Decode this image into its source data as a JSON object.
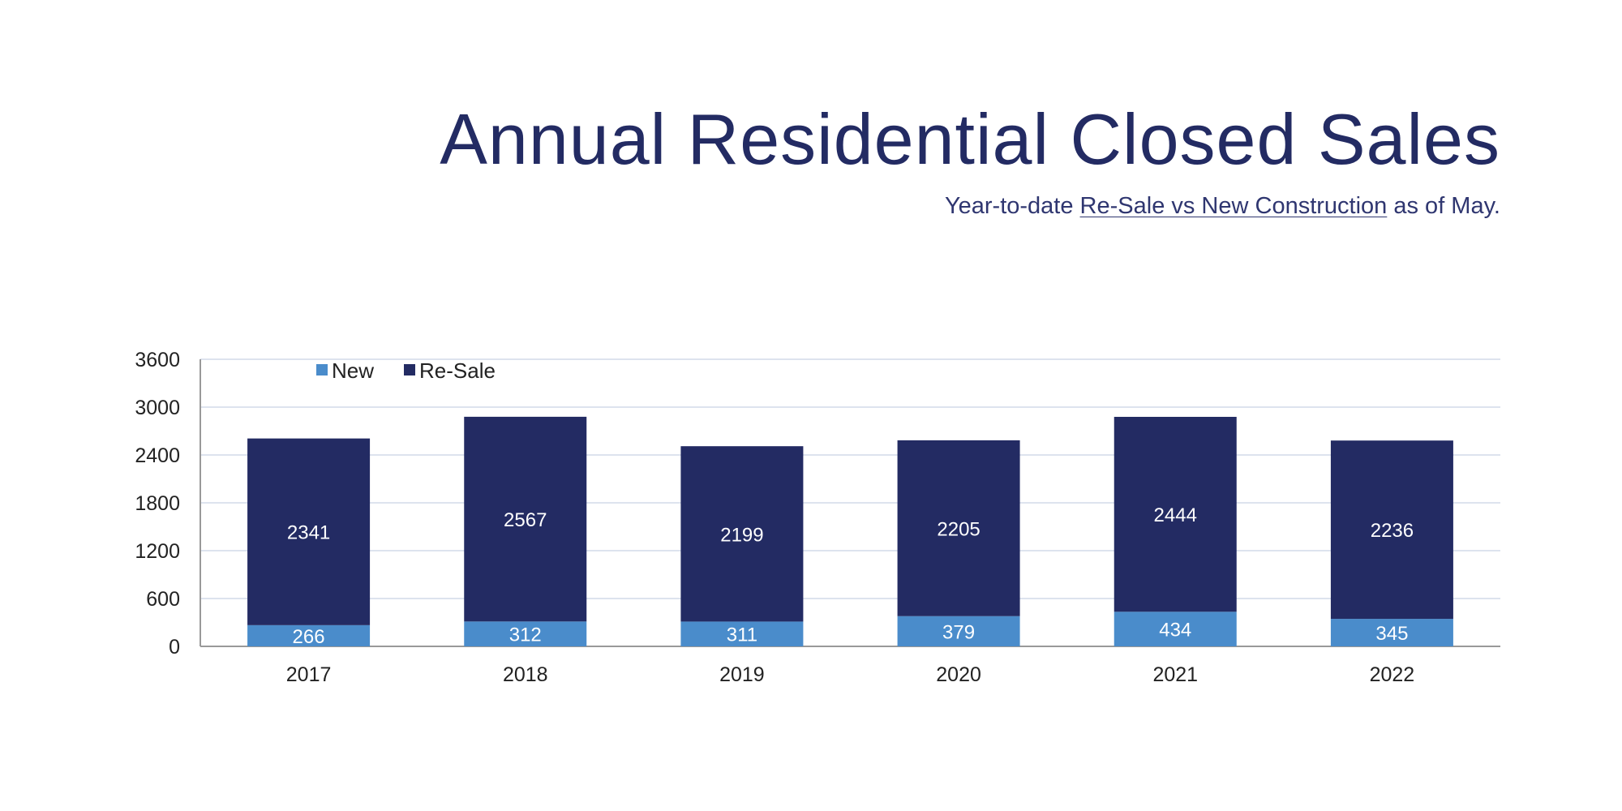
{
  "header": {
    "title": "Annual Residential Closed Sales",
    "subtitle_prefix": "Year-to-date",
    "subtitle_link": "Re-Sale vs New Construction",
    "subtitle_suffix": "as of May."
  },
  "chart_data": {
    "type": "bar",
    "stacked": true,
    "title": "",
    "xlabel": "",
    "ylabel": "",
    "categories": [
      "2017",
      "2018",
      "2019",
      "2020",
      "2021",
      "2022"
    ],
    "series": [
      {
        "name": "New",
        "color": "#4a8ccb",
        "values": [
          266,
          312,
          311,
          379,
          434,
          345
        ]
      },
      {
        "name": "Re-Sale",
        "color": "#232b63",
        "values": [
          2341,
          2567,
          2199,
          2205,
          2444,
          2236
        ]
      }
    ],
    "ylim": [
      0,
      3600
    ],
    "yticks": [
      0,
      600,
      1200,
      1800,
      2400,
      3000,
      3600
    ],
    "grid": true,
    "legend": "top-left",
    "data_labels": true
  }
}
